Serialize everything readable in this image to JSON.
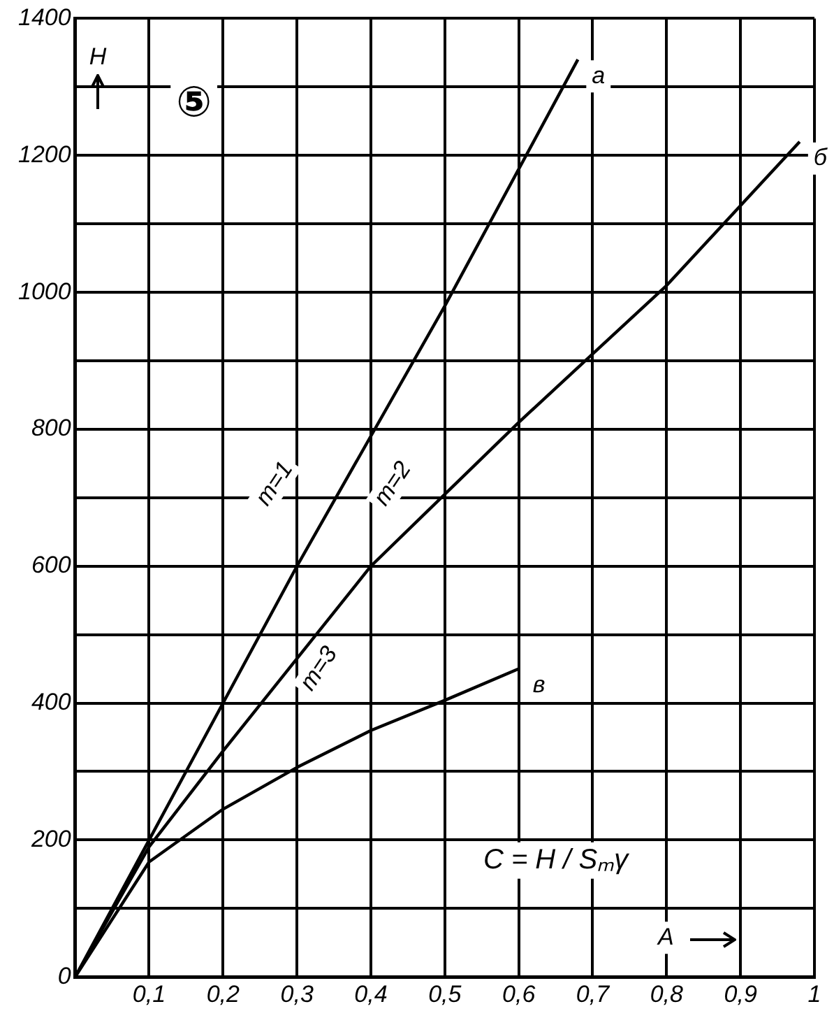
{
  "chart_data": {
    "type": "line",
    "xlabel": "A",
    "ylabel": "H",
    "series": [
      {
        "name": "a",
        "color": "#000000",
        "x": [
          0,
          0.1,
          0.3,
          0.5,
          0.68
        ],
        "values": [
          0,
          200,
          600,
          980,
          1340
        ]
      },
      {
        "name": "б",
        "color": "#000000",
        "x": [
          0,
          0.1,
          0.2,
          0.4,
          0.6,
          0.8,
          0.98
        ],
        "values": [
          0,
          190,
          330,
          600,
          810,
          1010,
          1220
        ]
      },
      {
        "name": "в",
        "color": "#000000",
        "x": [
          0,
          0.1,
          0.2,
          0.3,
          0.4,
          0.5,
          0.6
        ],
        "values": [
          0,
          168,
          245,
          306,
          360,
          404,
          450
        ]
      }
    ],
    "xlim": [
      0,
      1
    ],
    "ylim": [
      0,
      1400
    ],
    "xticks": [
      {
        "value": 0,
        "label": null
      },
      {
        "value": 0.1,
        "label": "0,1"
      },
      {
        "value": 0.2,
        "label": "0,2"
      },
      {
        "value": 0.3,
        "label": "0,3"
      },
      {
        "value": 0.4,
        "label": "0,4"
      },
      {
        "value": 0.5,
        "label": "0,5"
      },
      {
        "value": 0.6,
        "label": "0,6"
      },
      {
        "value": 0.7,
        "label": "0,7"
      },
      {
        "value": 0.8,
        "label": "0,8"
      },
      {
        "value": 0.9,
        "label": "0,9"
      },
      1
    ],
    "yticks": [
      0,
      {
        "value": 100,
        "label": null
      },
      200,
      {
        "value": 300,
        "label": null
      },
      400,
      {
        "value": 500,
        "label": null
      },
      600,
      {
        "value": 700,
        "label": null
      },
      800,
      {
        "value": 900,
        "label": null
      },
      1000,
      {
        "value": 1100,
        "label": null
      },
      1200,
      {
        "value": 1300,
        "label": null
      },
      1400
    ],
    "annotations": [
      "⑤",
      "C = H / Sₘγ",
      {
        "text": "m=1",
        "x": 0.27,
        "y": 720
      },
      {
        "text": "m=2",
        "x": 0.43,
        "y": 720
      },
      {
        "text": "m=3",
        "x": 0.33,
        "y": 450
      }
    ],
    "grid": true,
    "legend": false,
    "marker": "none",
    "line_style": "solid"
  }
}
